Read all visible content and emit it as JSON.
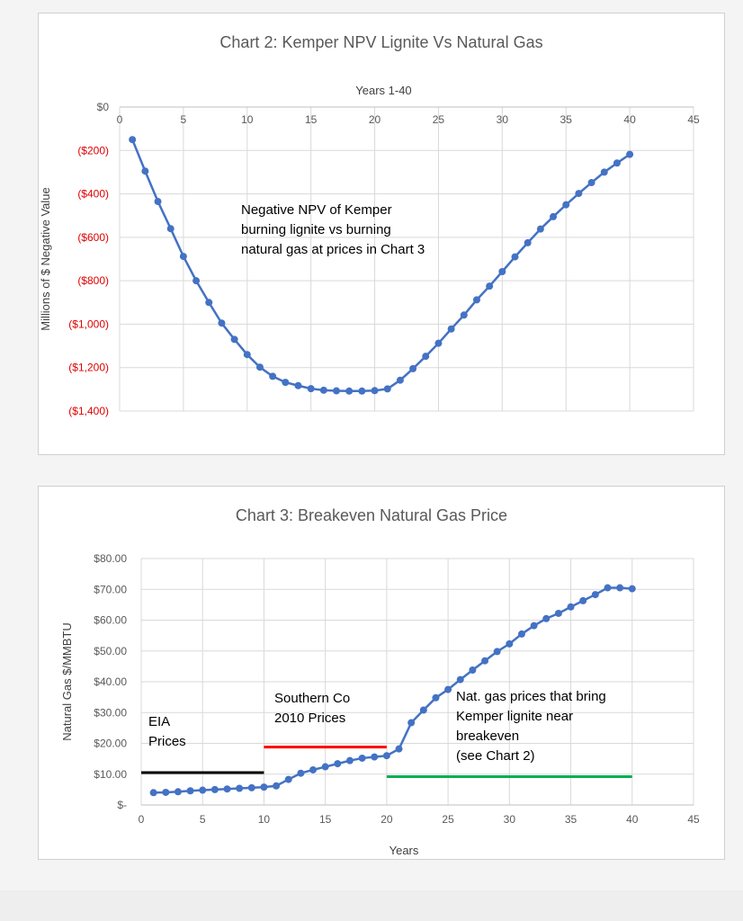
{
  "chart_data": [
    {
      "type": "line",
      "title": "Chart 2: Kemper NPV Lignite Vs Natural Gas",
      "xlabel": "Years 1-40",
      "ylabel": "Millions of $ Negative Value",
      "x_ticks": [
        "0",
        "5",
        "10",
        "15",
        "20",
        "25",
        "30",
        "35",
        "40",
        "45"
      ],
      "y_ticks": [
        "$0",
        "($200)",
        "($400)",
        "($600)",
        "($800)",
        "($1,000)",
        "($1,200)",
        "($1,400)"
      ],
      "xlim": [
        0,
        45
      ],
      "ylim": [
        -1400,
        0
      ],
      "x_axis_position": "top",
      "grid": true,
      "negative_tick_color": "#e00000",
      "series_color": "#4472c4",
      "annotation": [
        "Negative NPV of Kemper",
        "burning lignite vs burning",
        "natural gas at prices in Chart 3"
      ],
      "series": [
        {
          "x": [
            1,
            2,
            3,
            4,
            5,
            6,
            7,
            8,
            9,
            10,
            11,
            12,
            13,
            14,
            15,
            16,
            17,
            18,
            19,
            20,
            21,
            22,
            23,
            24,
            25,
            26,
            27,
            28,
            29,
            30,
            31,
            32,
            33,
            34,
            35,
            36,
            37,
            38,
            39,
            40
          ],
          "values": [
            -150,
            -295,
            -435,
            -560,
            -688,
            -800,
            -900,
            -995,
            -1070,
            -1140,
            -1198,
            -1240,
            -1268,
            -1283,
            -1297,
            -1304,
            -1307,
            -1308,
            -1308,
            -1306,
            -1298,
            -1258,
            -1205,
            -1148,
            -1088,
            -1022,
            -958,
            -888,
            -825,
            -758,
            -690,
            -625,
            -562,
            -505,
            -450,
            -398,
            -348,
            -300,
            -258,
            -218
          ]
        }
      ]
    },
    {
      "type": "line",
      "title": "Chart 3:  Breakeven Natural Gas Price",
      "xlabel": "Years",
      "ylabel": "Natural Gas $/MMBTU",
      "x_ticks": [
        "0",
        "5",
        "10",
        "15",
        "20",
        "25",
        "30",
        "35",
        "40",
        "45"
      ],
      "y_ticks": [
        "$-",
        "$10.00",
        "$20.00",
        "$30.00",
        "$40.00",
        "$50.00",
        "$60.00",
        "$70.00",
        "$80.00"
      ],
      "xlim": [
        0,
        45
      ],
      "ylim": [
        0,
        80
      ],
      "grid": true,
      "series_color": "#4472c4",
      "series": [
        {
          "x": [
            1,
            2,
            3,
            4,
            5,
            6,
            7,
            8,
            9,
            10,
            11,
            12,
            13,
            14,
            15,
            16,
            17,
            18,
            19,
            20,
            21,
            22,
            23,
            24,
            25,
            26,
            27,
            28,
            29,
            30,
            31,
            32,
            33,
            34,
            35,
            36,
            37,
            38,
            39,
            40
          ],
          "values": [
            4.0,
            4.1,
            4.3,
            4.6,
            4.8,
            5.0,
            5.2,
            5.4,
            5.6,
            5.8,
            6.2,
            8.3,
            10.3,
            11.4,
            12.4,
            13.4,
            14.4,
            15.2,
            15.6,
            16.0,
            18.2,
            26.7,
            30.8,
            34.8,
            37.5,
            40.7,
            43.8,
            46.8,
            49.8,
            52.3,
            55.5,
            58.2,
            60.5,
            62.2,
            64.3,
            66.3,
            68.3,
            70.5,
            70.5,
            70.2
          ]
        }
      ],
      "reference_lines": [
        {
          "x_from": 0,
          "x_to": 10,
          "y": 10.5,
          "color": "#000000"
        },
        {
          "x_from": 10,
          "x_to": 20,
          "y": 18.8,
          "color": "#ff0000"
        },
        {
          "x_from": 20,
          "x_to": 40,
          "y": 9.2,
          "color": "#00b050"
        }
      ],
      "annotations": [
        {
          "lines": [
            "EIA",
            "Prices"
          ]
        },
        {
          "lines": [
            "Southern Co",
            "2010 Prices"
          ]
        },
        {
          "lines": [
            "Nat. gas prices that bring",
            "Kemper lignite near",
            "breakeven",
            "(see Chart 2)"
          ]
        }
      ]
    }
  ]
}
